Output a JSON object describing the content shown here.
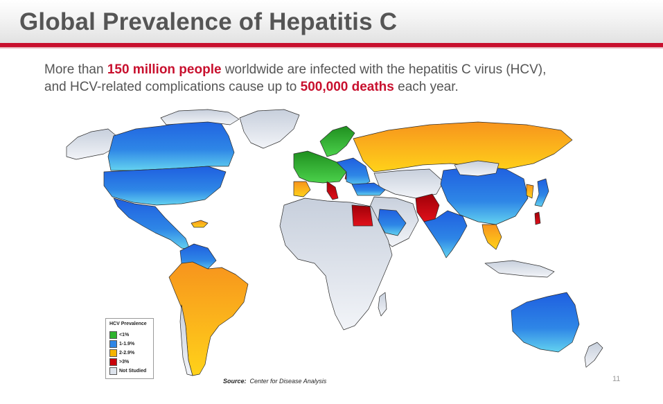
{
  "slide": {
    "title": "Global Prevalence of Hepatitis C",
    "intro": {
      "p1": "More than ",
      "h1": "150 million people",
      "p2": " worldwide are infected with the hepatitis C virus (HCV),",
      "p3": "and HCV-related complications cause up to ",
      "h2": "500,000 deaths",
      "p4": " each year."
    },
    "source_label": "Source:",
    "source_text": "Center for Disease Analysis",
    "page_number": "11"
  },
  "legend": {
    "title": "HCV Prevalence",
    "items": [
      {
        "label": "<1%",
        "color": "#2db32d"
      },
      {
        "label": "1-1.9%",
        "color": "#2e86e6"
      },
      {
        "label": "2-2.9%",
        "color": "#f4b400"
      },
      {
        "label": ">3%",
        "color": "#c8000a"
      },
      {
        "label": "Not Studied",
        "color": "#dde3ec"
      }
    ]
  },
  "colors": {
    "accent": "#c8102e",
    "title_text": "#555555"
  }
}
